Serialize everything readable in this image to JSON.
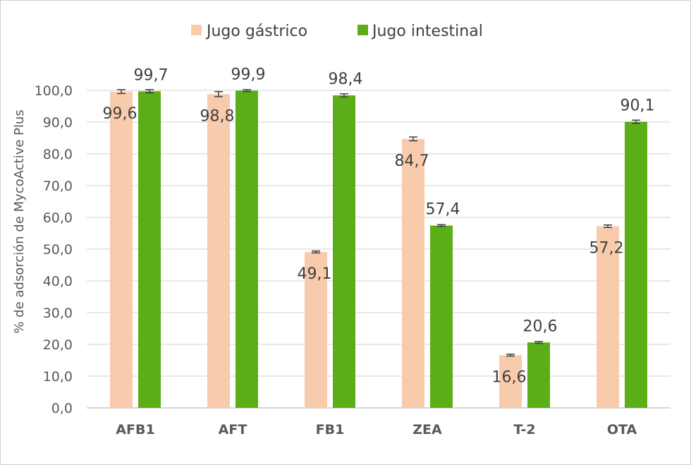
{
  "chart_data": {
    "type": "bar",
    "title": "",
    "xlabel": "",
    "ylabel": "% de adsorción de MycoActive Plus",
    "ylim": [
      0,
      100
    ],
    "yticks": [
      "0,0",
      "10,0",
      "20,0",
      "30,0",
      "40,0",
      "50,0",
      "60,0",
      "70,0",
      "80,0",
      "90,0",
      "100,0"
    ],
    "grid": true,
    "legend_position": "top",
    "categories": [
      "AFB1",
      "AFT",
      "FB1",
      "ZEA",
      "T-2",
      "OTA"
    ],
    "series": [
      {
        "name": "Jugo gástrico",
        "color": "#F8CBAD",
        "values": [
          99.6,
          98.8,
          49.1,
          84.7,
          16.6,
          57.2
        ],
        "labels": [
          "99,6",
          "98,8",
          "49,1",
          "84,7",
          "16,6",
          "57,2"
        ],
        "errors": [
          0.6,
          0.8,
          0.3,
          0.6,
          0.3,
          0.4
        ]
      },
      {
        "name": "Jugo intestinal",
        "color": "#5BAE17",
        "values": [
          99.7,
          99.9,
          98.4,
          57.4,
          20.6,
          90.1
        ],
        "labels": [
          "99,7",
          "99,9",
          "98,4",
          "57,4",
          "20,6",
          "90,1"
        ],
        "errors": [
          0.5,
          0.3,
          0.5,
          0.3,
          0.3,
          0.5
        ]
      }
    ]
  }
}
